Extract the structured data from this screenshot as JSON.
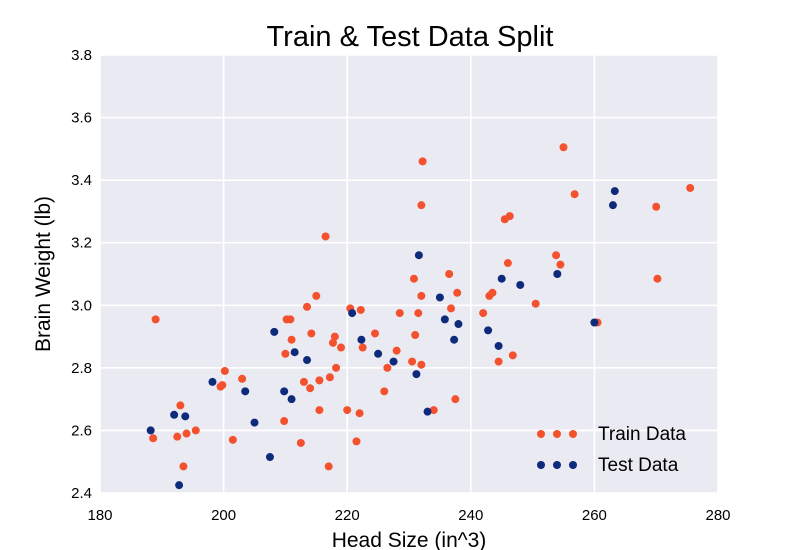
{
  "chart_data": {
    "type": "scatter",
    "title": "Train & Test Data Split",
    "xlabel": "Head Size (in^3)",
    "ylabel": "Brain Weight (lb)",
    "xlim": [
      180,
      280
    ],
    "ylim": [
      2.4,
      3.8
    ],
    "xticks": [
      "180",
      "200",
      "220",
      "240",
      "260",
      "280"
    ],
    "yticks": [
      "2.4",
      "2.6",
      "2.8",
      "3.0",
      "3.2",
      "3.4",
      "3.6",
      "3.8"
    ],
    "grid": true,
    "legend_position": "bottom-right",
    "series": [
      {
        "name": "Train Data",
        "color": "#f4522e",
        "points": [
          [
            188.6,
            2.575
          ],
          [
            189.0,
            2.955
          ],
          [
            192.5,
            2.58
          ],
          [
            193.0,
            2.68
          ],
          [
            193.5,
            2.485
          ],
          [
            194.0,
            2.59
          ],
          [
            195.5,
            2.6
          ],
          [
            199.5,
            2.74
          ],
          [
            199.8,
            2.745
          ],
          [
            200.2,
            2.79
          ],
          [
            201.5,
            2.57
          ],
          [
            203.0,
            2.765
          ],
          [
            209.8,
            2.63
          ],
          [
            210.0,
            2.845
          ],
          [
            210.2,
            2.955
          ],
          [
            210.8,
            2.955
          ],
          [
            211.0,
            2.89
          ],
          [
            212.5,
            2.56
          ],
          [
            213.0,
            2.755
          ],
          [
            213.5,
            2.995
          ],
          [
            214.0,
            2.735
          ],
          [
            214.2,
            2.91
          ],
          [
            215.0,
            3.03
          ],
          [
            215.5,
            2.665
          ],
          [
            215.5,
            2.76
          ],
          [
            216.5,
            3.22
          ],
          [
            217.0,
            2.485
          ],
          [
            217.2,
            2.77
          ],
          [
            217.7,
            2.88
          ],
          [
            218.0,
            2.9
          ],
          [
            218.2,
            2.8
          ],
          [
            219.0,
            2.865
          ],
          [
            220.0,
            2.665
          ],
          [
            220.5,
            2.99
          ],
          [
            221.5,
            2.565
          ],
          [
            222.0,
            2.655
          ],
          [
            222.2,
            2.985
          ],
          [
            222.5,
            2.865
          ],
          [
            224.5,
            2.91
          ],
          [
            226.0,
            2.725
          ],
          [
            226.5,
            2.8
          ],
          [
            228.0,
            2.855
          ],
          [
            228.5,
            2.975
          ],
          [
            230.5,
            2.82
          ],
          [
            230.8,
            3.085
          ],
          [
            231.0,
            2.905
          ],
          [
            231.5,
            2.975
          ],
          [
            232.0,
            3.32
          ],
          [
            232.2,
            3.46
          ],
          [
            232.0,
            3.03
          ],
          [
            232.0,
            2.81
          ],
          [
            234.0,
            2.665
          ],
          [
            236.5,
            3.1
          ],
          [
            236.8,
            2.99
          ],
          [
            237.5,
            2.7
          ],
          [
            237.8,
            3.04
          ],
          [
            242.0,
            2.975
          ],
          [
            243.0,
            3.03
          ],
          [
            243.5,
            3.04
          ],
          [
            244.5,
            2.82
          ],
          [
            245.5,
            3.275
          ],
          [
            246.0,
            3.135
          ],
          [
            246.3,
            3.285
          ],
          [
            246.8,
            2.84
          ],
          [
            250.5,
            3.005
          ],
          [
            253.8,
            3.16
          ],
          [
            254.5,
            3.13
          ],
          [
            255.0,
            3.505
          ],
          [
            256.8,
            3.355
          ],
          [
            260.5,
            2.945
          ],
          [
            270.0,
            3.315
          ],
          [
            270.2,
            3.085
          ],
          [
            275.5,
            3.375
          ]
        ]
      },
      {
        "name": "Test Data",
        "color": "#0e2a7b",
        "points": [
          [
            188.2,
            2.6
          ],
          [
            192.0,
            2.65
          ],
          [
            192.8,
            2.425
          ],
          [
            193.8,
            2.645
          ],
          [
            198.2,
            2.755
          ],
          [
            203.5,
            2.725
          ],
          [
            205.0,
            2.625
          ],
          [
            207.5,
            2.515
          ],
          [
            208.2,
            2.915
          ],
          [
            209.8,
            2.725
          ],
          [
            211.0,
            2.7
          ],
          [
            211.5,
            2.85
          ],
          [
            213.5,
            2.825
          ],
          [
            220.8,
            2.975
          ],
          [
            222.3,
            2.89
          ],
          [
            225.0,
            2.845
          ],
          [
            227.5,
            2.82
          ],
          [
            231.2,
            2.78
          ],
          [
            231.6,
            3.16
          ],
          [
            233.0,
            2.66
          ],
          [
            235.0,
            3.025
          ],
          [
            235.8,
            2.955
          ],
          [
            237.3,
            2.89
          ],
          [
            238.0,
            2.94
          ],
          [
            242.8,
            2.92
          ],
          [
            244.5,
            2.87
          ],
          [
            245.0,
            3.085
          ],
          [
            248.0,
            3.065
          ],
          [
            254.0,
            3.1
          ],
          [
            260.0,
            2.945
          ],
          [
            263.0,
            3.32
          ],
          [
            263.3,
            3.365
          ]
        ]
      }
    ]
  }
}
